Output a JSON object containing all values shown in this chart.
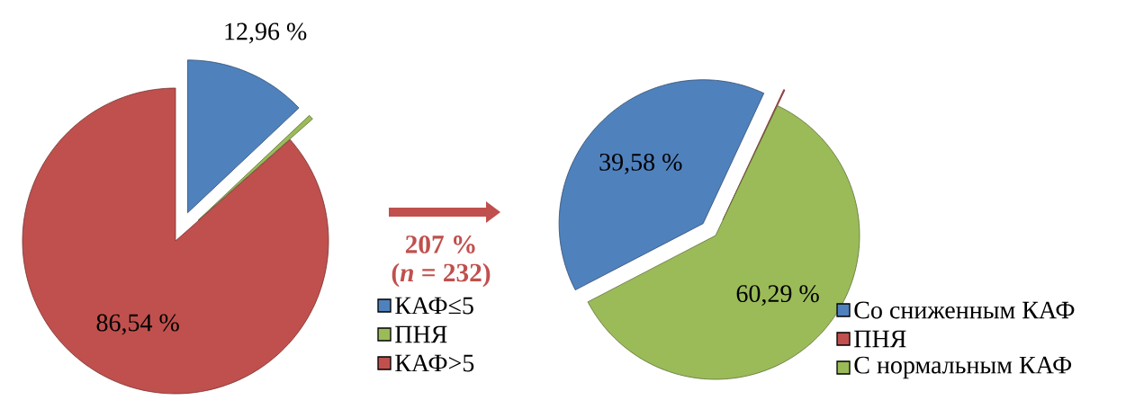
{
  "chart_data": [
    {
      "type": "pie",
      "categories": [
        "КАФ≤5",
        "ПНЯ",
        "КАФ>5"
      ],
      "values": [
        12.96,
        0.5,
        86.54
      ],
      "value_labels": [
        "12,96 %",
        null,
        "86,54 %"
      ],
      "colors": [
        "#4f81bd",
        "#9bbb59",
        "#c0504d"
      ],
      "legend": "bottom right",
      "annotations": [
        "207 %",
        "(*n* = 232)"
      ]
    },
    {
      "type": "pie",
      "categories": [
        "Со сниженным КАФ",
        "ПНЯ",
        "С нормальным КАФ"
      ],
      "values": [
        39.58,
        0.13,
        60.29
      ],
      "value_labels": [
        "39,58 %",
        null,
        "60,29 %"
      ],
      "colors": [
        "#4f81bd",
        "#c0504d",
        "#9bbb59"
      ],
      "legend": "bottom right"
    }
  ]
}
